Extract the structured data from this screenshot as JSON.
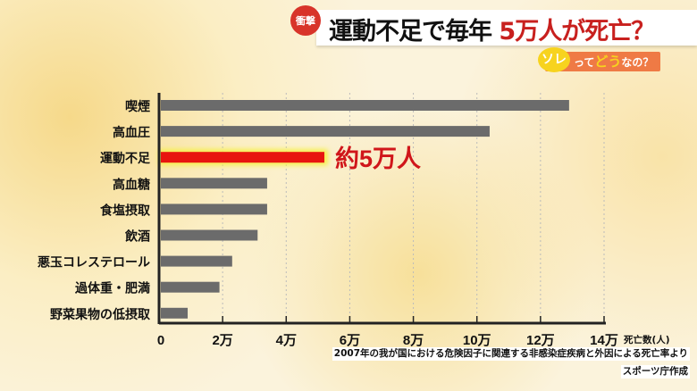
{
  "header": {
    "badge": "衝撃",
    "title_prefix": "運動不足で毎年",
    "title_highlight": "5万人が死亡？",
    "subtitle_so": "ソレ",
    "subtitle_tte": "って",
    "subtitle_do": "どう",
    "subtitle_nano": "なの？"
  },
  "chart_data": {
    "type": "bar",
    "orientation": "horizontal",
    "categories": [
      "喫煙",
      "高血圧",
      "運動不足",
      "高血糖",
      "食塩摂取",
      "飲酒",
      "悪玉コレステロール",
      "過体重・肥満",
      "野菜果物の低摂取"
    ],
    "values": [
      129000,
      104000,
      52000,
      34000,
      34000,
      31000,
      23000,
      19000,
      9000
    ],
    "highlight_index": 2,
    "annotation": "約5万人",
    "xlabel": "死亡数(人)",
    "xlim": [
      0,
      140000
    ],
    "xticks": [
      0,
      20000,
      40000,
      60000,
      80000,
      100000,
      120000,
      140000
    ],
    "xtick_labels": [
      "0",
      "2万",
      "4万",
      "6万",
      "8万",
      "10万",
      "12万",
      "14万"
    ],
    "grid": true,
    "colors": {
      "bar": "#6b6b6b",
      "highlight": "#e8150f",
      "highlight_glow": "#f6ef4a",
      "annotation": "#d0161a"
    }
  },
  "source": {
    "line1": "2007年の我が国における危険因子に関連する非感染症疾病と外因による死亡率より",
    "line2": "スポーツ庁作成"
  }
}
